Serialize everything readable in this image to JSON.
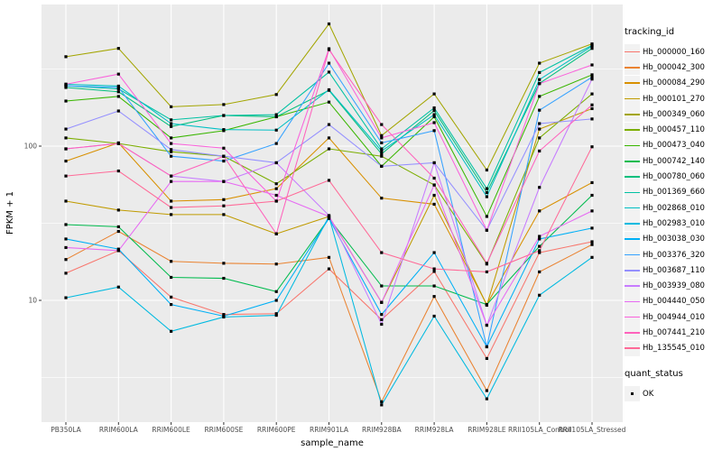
{
  "figure": {
    "background": "#FFFFFF",
    "panel_background": "#EBEBEB",
    "gridline_color": "#FFFFFF",
    "tick_label_color": "#4D4D4D",
    "tick_mark_color": "#333333"
  },
  "chart_data": {
    "type": "line",
    "title": "",
    "xlabel": "sample_name",
    "ylabel": "FPKM + 1",
    "y_scale": "log10",
    "y_major_ticks": [
      10,
      100
    ],
    "y_minor_gridlines": [
      3.16,
      31.6,
      316
    ],
    "ylim": [
      1.6,
      830
    ],
    "grid": true,
    "legend_position": "right",
    "point_marker": {
      "shape": "square",
      "color": "#000000",
      "size": 3.2
    },
    "categories": [
      "PB350LA",
      "RRIM600LA",
      "RRIM600LE",
      "RRIM600SE",
      "RRIM600PE",
      "RRIM901LA",
      "RRIM928BA",
      "RRIM928LA",
      "RRIM928LE",
      "RRII105LA_Control",
      "RRII105LA_Stressed"
    ],
    "series": [
      {
        "name": "Hb_000000_160",
        "color": "#F8766D",
        "values": [
          15,
          21,
          10.5,
          8.1,
          8.2,
          16,
          7.5,
          15.4,
          4.2,
          20.4,
          24
        ]
      },
      {
        "name": "Hb_000042_300",
        "color": "#EA8331",
        "values": [
          18.4,
          28,
          17.9,
          17.4,
          17.2,
          19,
          2.2,
          10.6,
          2.6,
          15.3,
          23
        ]
      },
      {
        "name": "Hb_000084_290",
        "color": "#D89000",
        "values": [
          80,
          105,
          44,
          45,
          53,
          113,
          46,
          42,
          9.4,
          38,
          58
        ]
      },
      {
        "name": "Hb_000101_270",
        "color": "#C09B00",
        "values": [
          44,
          38.5,
          36,
          36,
          27,
          35,
          9.7,
          48,
          9.3,
          129,
          175
        ]
      },
      {
        "name": "Hb_000349_060",
        "color": "#A3A500",
        "values": [
          380,
          430,
          180,
          186,
          216,
          620,
          117,
          218,
          70,
          345,
          460
        ]
      },
      {
        "name": "Hb_000457_110",
        "color": "#7CAE00",
        "values": [
          113,
          104,
          92,
          86,
          57,
          96,
          86,
          56,
          17.2,
          113,
          218
        ]
      },
      {
        "name": "Hb_000473_040",
        "color": "#39B600",
        "values": [
          196,
          210,
          113,
          126,
          155,
          193,
          74,
          155,
          35,
          210,
          290
        ]
      },
      {
        "name": "Hb_000742_140",
        "color": "#00BB4E",
        "values": [
          31,
          30,
          14.1,
          13.9,
          11.4,
          34,
          12.4,
          12.4,
          9.4,
          22.4,
          48
        ]
      },
      {
        "name": "Hb_000780_060",
        "color": "#00BF7D",
        "values": [
          240,
          225,
          134,
          158,
          155,
          230,
          89,
          170,
          50,
          255,
          430
        ]
      },
      {
        "name": "Hb_001369_660",
        "color": "#00C1A3",
        "values": [
          246,
          235,
          148,
          158,
          160,
          302,
          96,
          177,
          53,
          300,
          450
        ]
      },
      {
        "name": "Hb_002868_010",
        "color": "#00BFC4",
        "values": [
          252,
          245,
          140,
          128,
          127,
          232,
          93,
          160,
          47,
          270,
          445
        ]
      },
      {
        "name": "Hb_002983_010",
        "color": "#00BAE0",
        "values": [
          10.4,
          12.2,
          6.3,
          7.8,
          8,
          35,
          2.1,
          7.9,
          2.3,
          10.8,
          19
        ]
      },
      {
        "name": "Hb_003038_030",
        "color": "#00B0F6",
        "values": [
          25,
          21.5,
          9.4,
          7.9,
          10,
          34,
          8.1,
          20.4,
          5,
          25,
          29.4
        ]
      },
      {
        "name": "Hb_003376_320",
        "color": "#35A2FF",
        "values": [
          246,
          240,
          86,
          80,
          104,
          345,
          105,
          126,
          5,
          171,
          280
        ]
      },
      {
        "name": "Hb_003687_110",
        "color": "#9590FF",
        "values": [
          129,
          169,
          95,
          86,
          78,
          138,
          74,
          78,
          28.5,
          140,
          150
        ]
      },
      {
        "name": "Hb_003939_080",
        "color": "#C77CFF",
        "values": [
          96,
          104,
          64,
          59,
          78,
          35.5,
          7,
          78,
          6.9,
          54,
          272
        ]
      },
      {
        "name": "Hb_004440_050",
        "color": "#E76BF3",
        "values": [
          22,
          21,
          59,
          59,
          48,
          35,
          9.7,
          56,
          6.9,
          26,
          38
        ]
      },
      {
        "name": "Hb_004944_010",
        "color": "#FA62DB",
        "values": [
          252,
          293,
          104,
          97,
          44,
          428,
          113,
          142,
          28.5,
          254,
          336
        ]
      },
      {
        "name": "Hb_007441_210",
        "color": "#FF62BC",
        "values": [
          96,
          104,
          64,
          86,
          27,
          422,
          138,
          62,
          17.4,
          93,
          185
        ]
      },
      {
        "name": "Hb_135545_010",
        "color": "#FF6A98",
        "values": [
          64,
          69,
          40,
          41,
          44,
          60,
          20.4,
          16,
          15.3,
          21,
          99
        ]
      }
    ]
  },
  "legend": {
    "title": "tracking_id",
    "key_background": "#F2F2F2"
  },
  "legend2": {
    "title": "quant_status",
    "items": [
      {
        "label": "OK",
        "marker": "black-square"
      }
    ]
  }
}
